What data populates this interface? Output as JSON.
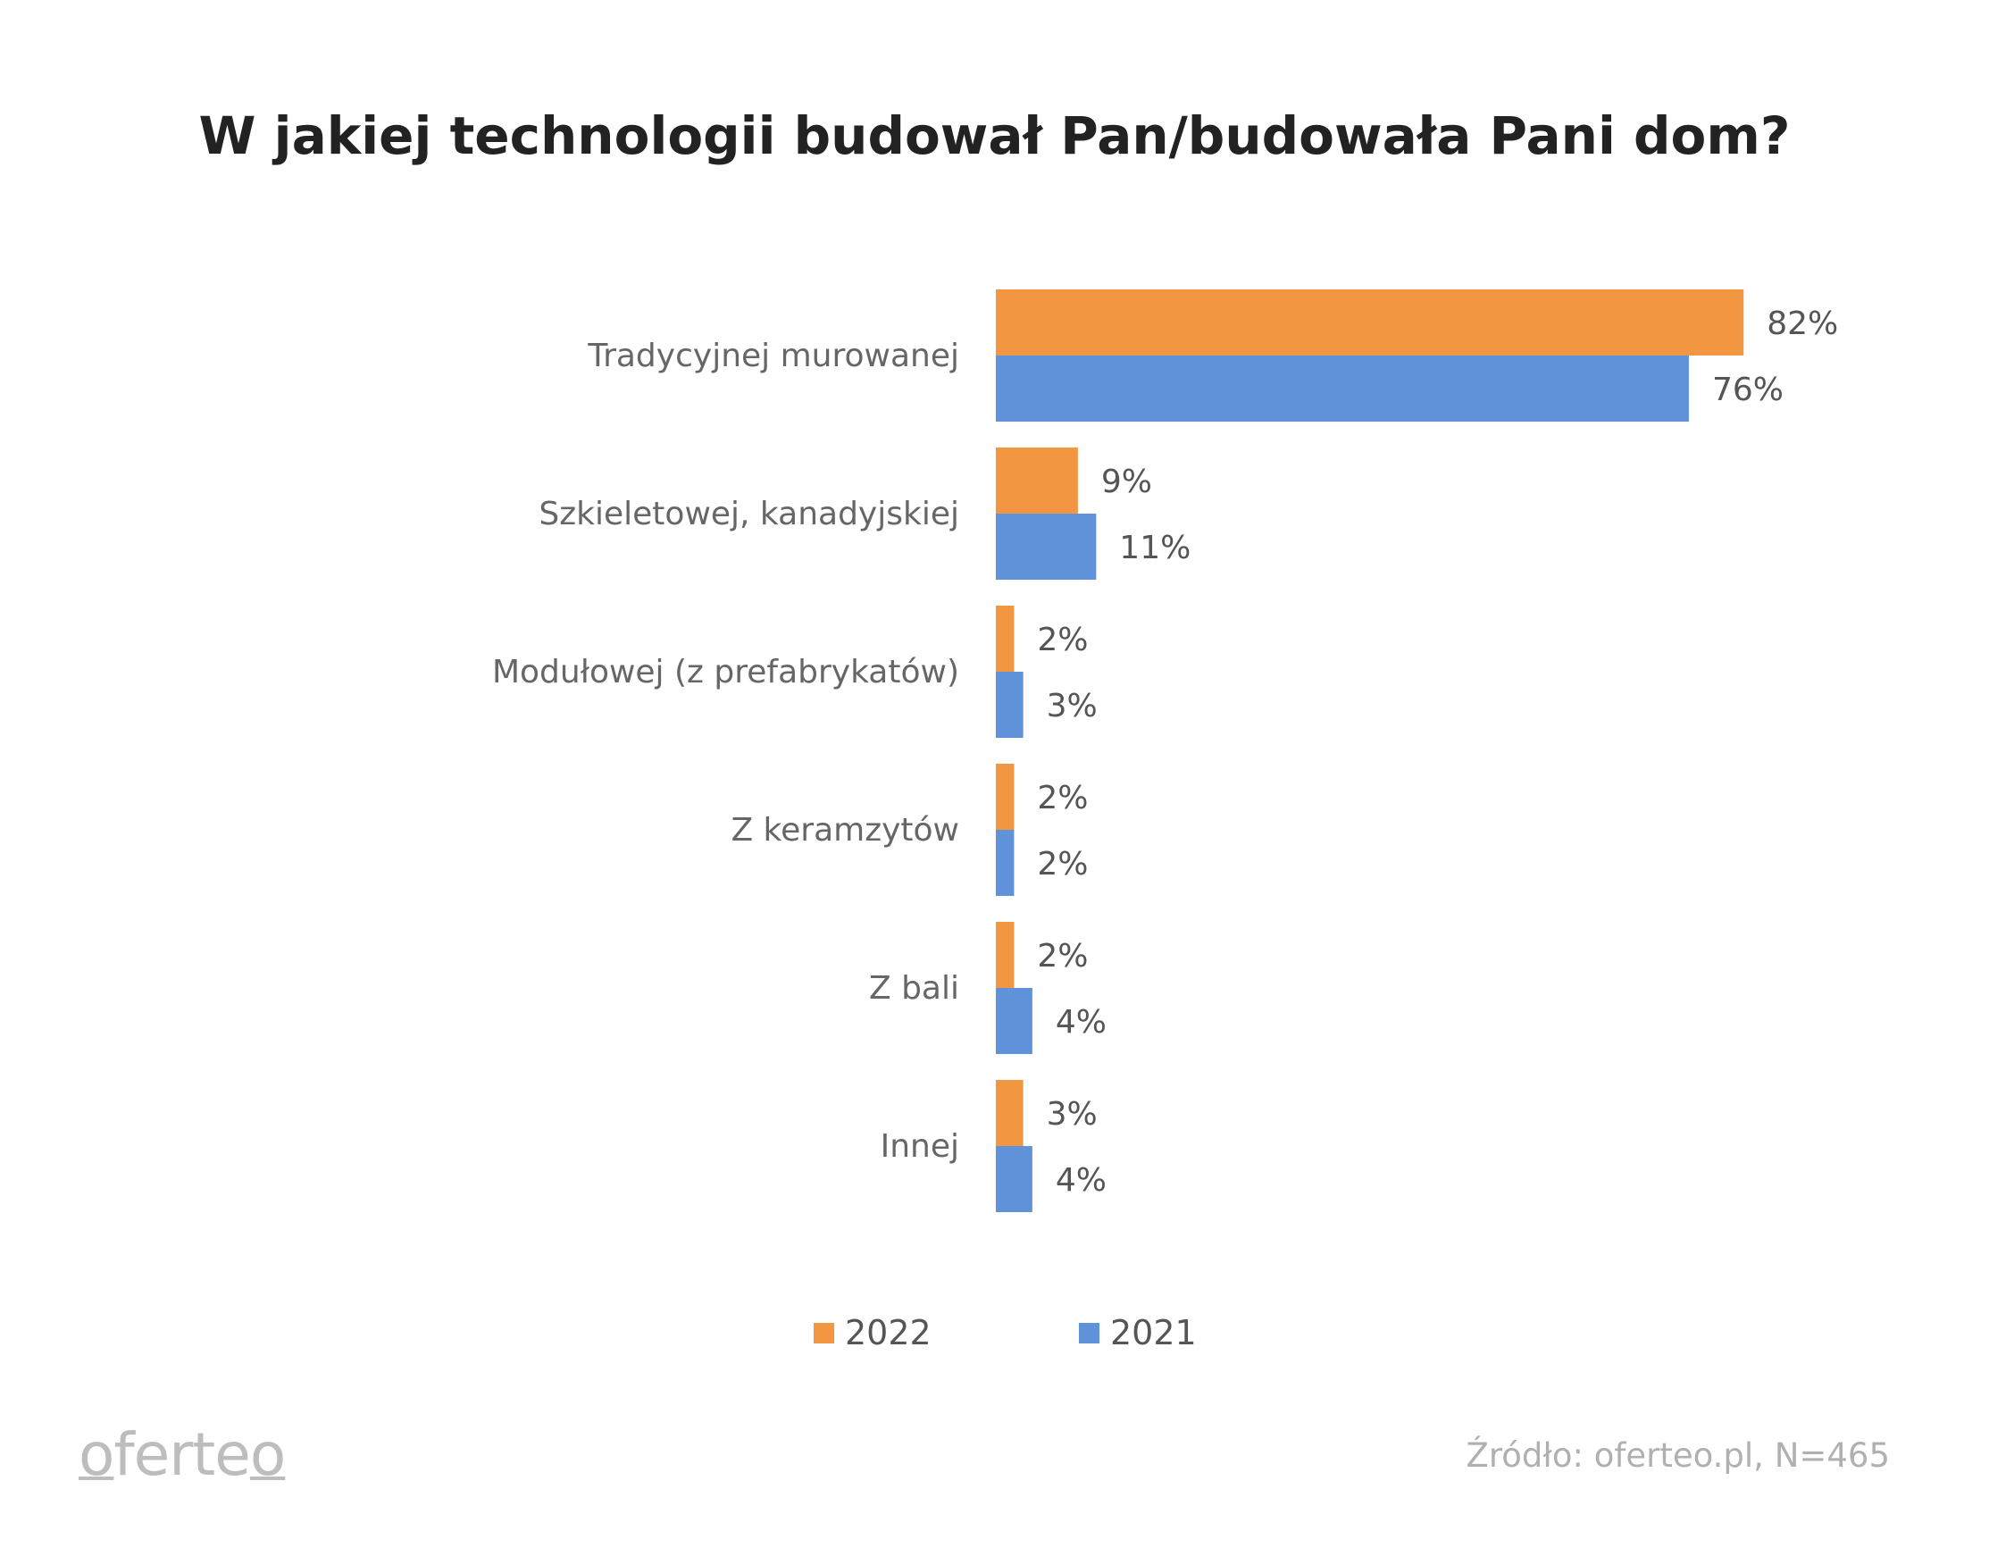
{
  "chart_data": {
    "type": "bar",
    "orientation": "horizontal",
    "title": "W jakiej technologii budował Pan/budowała Pani dom?",
    "categories": [
      "Tradycyjnej murowanej",
      "Szkieletowej, kanadyjskiej",
      "Modułowej (z prefabrykatów)",
      "Z keramzytów",
      "Z bali",
      "Innej"
    ],
    "series": [
      {
        "name": "2022",
        "color": "#F39641",
        "values": [
          82,
          9,
          2,
          2,
          2,
          3
        ]
      },
      {
        "name": "2021",
        "color": "#6092DA",
        "values": [
          76,
          11,
          3,
          2,
          4,
          4
        ]
      }
    ],
    "unit": "%",
    "xlim": [
      0,
      100
    ],
    "grid": false,
    "legend_position": "bottom"
  },
  "footer": {
    "logo": "oferteo",
    "source": "Źródło: oferteo.pl, N=465"
  }
}
